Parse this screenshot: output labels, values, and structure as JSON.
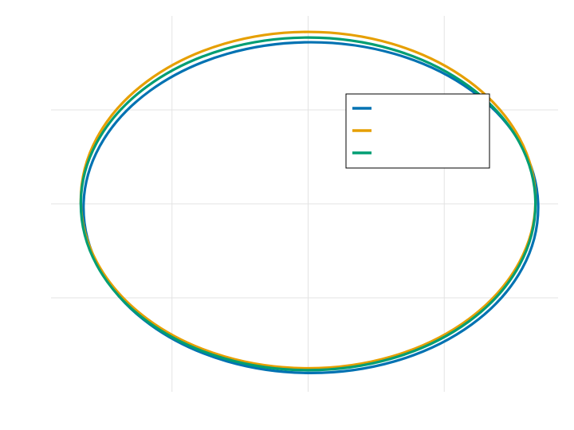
{
  "chart_data": {
    "type": "line",
    "title": "",
    "xlabel": "",
    "ylabel": "",
    "xlim": [
      -1.0,
      1.0
    ],
    "ylim": [
      -1.0,
      1.0
    ],
    "xticks": [
      -0.5,
      0.0,
      0.5
    ],
    "yticks": [
      -0.5,
      0.0,
      0.5
    ],
    "grid": true,
    "legend_position": "top-right",
    "series": [
      {
        "name": "",
        "color": "#0072b2",
        "center": [
          0.01,
          -0.02
        ],
        "radius": [
          0.835,
          0.88
        ]
      },
      {
        "name": "",
        "color": "#e69f00",
        "center": [
          0.0,
          0.02
        ],
        "radius": [
          0.835,
          0.895
        ]
      },
      {
        "name": "",
        "color": "#009e73",
        "center": [
          0.0,
          0.0
        ],
        "radius": [
          0.835,
          0.885
        ]
      }
    ]
  }
}
